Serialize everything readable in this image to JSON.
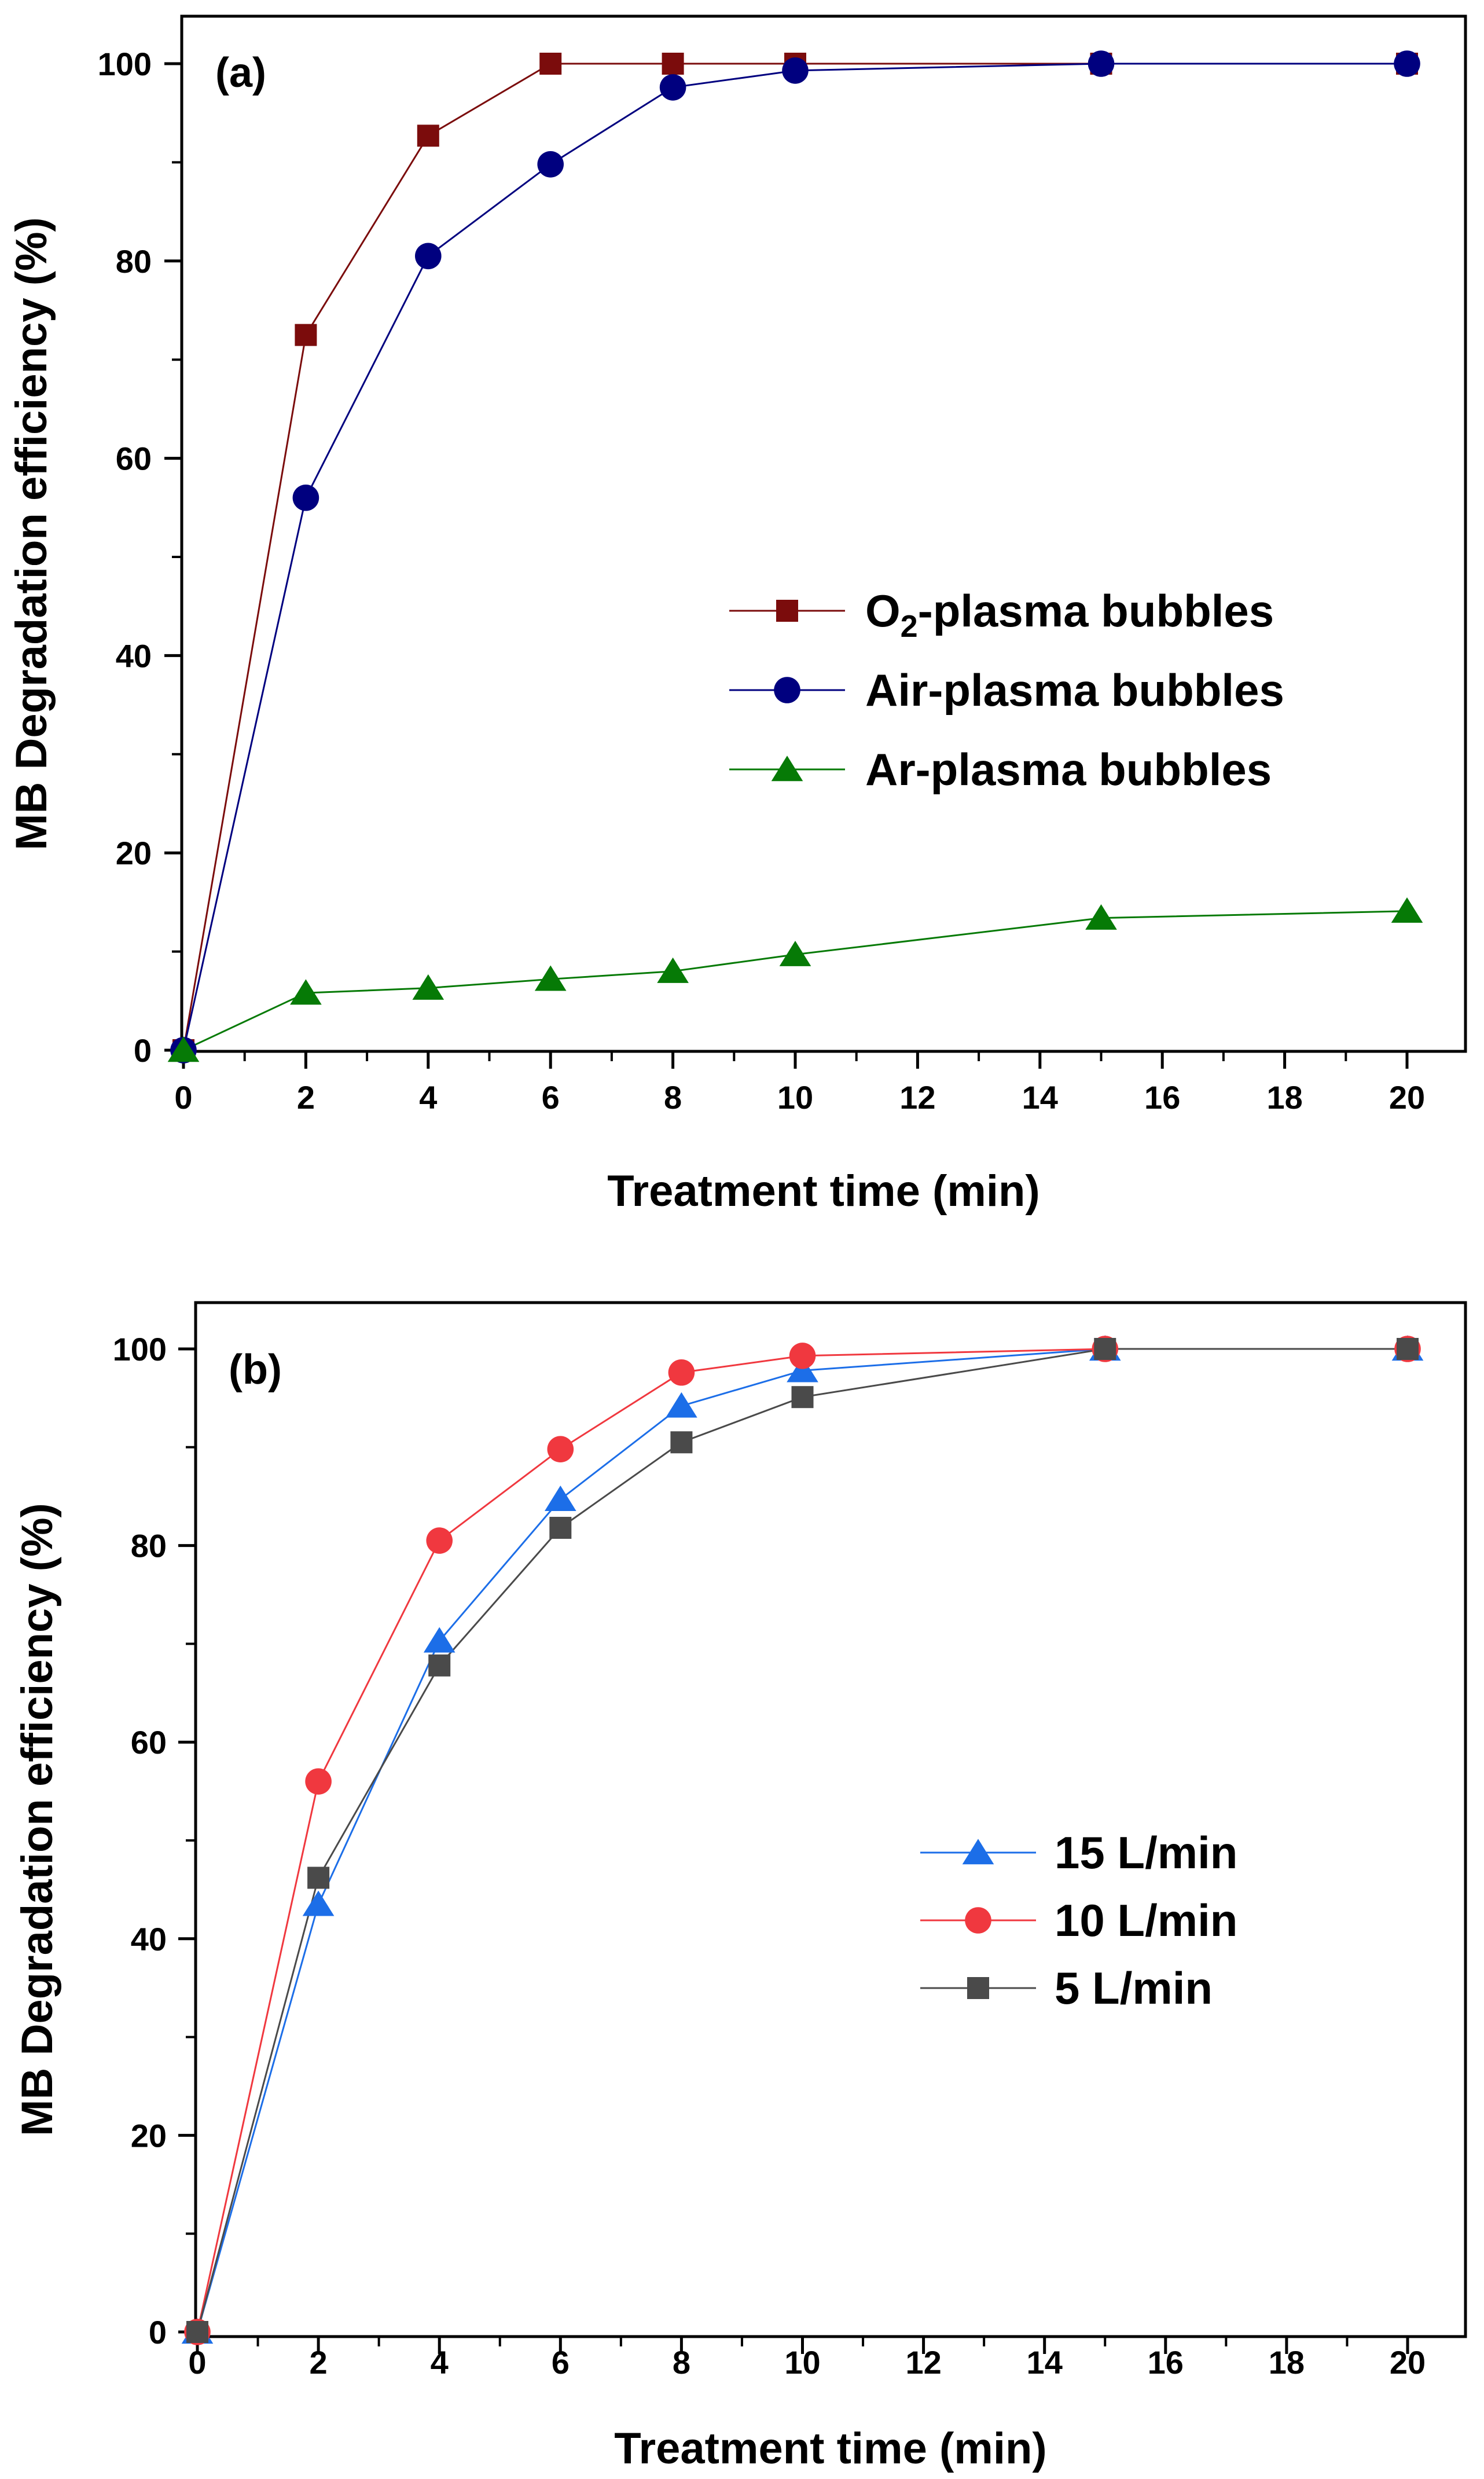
{
  "chart_data": [
    {
      "type": "line",
      "panel_label": "(a)",
      "xlabel": "Treatment time (min)",
      "ylabel": "MB Degradation efficiency (%)",
      "xlim": [
        0,
        21
      ],
      "ylim": [
        0,
        104
      ],
      "xticks": [
        0,
        2,
        4,
        6,
        8,
        10,
        12,
        14,
        16,
        18,
        20
      ],
      "yticks": [
        0,
        20,
        40,
        60,
        80,
        100
      ],
      "legend_position": "center-right",
      "series": [
        {
          "name": "O2-plasma bubbles",
          "legend_main": "O",
          "legend_sub": "2",
          "legend_rest": "-plasma bubbles",
          "color": "#7b0c0c",
          "marker": "square",
          "x": [
            0,
            2,
            4,
            6,
            8,
            10,
            15,
            20
          ],
          "values": [
            0,
            72.5,
            92.7,
            100,
            100,
            100,
            100,
            100
          ]
        },
        {
          "name": "Air-plasma bubbles",
          "color": "#00007f",
          "marker": "circle",
          "x": [
            0,
            2,
            4,
            6,
            8,
            10,
            15,
            20
          ],
          "values": [
            0,
            56,
            80.5,
            89.8,
            97.6,
            99.3,
            100,
            100
          ]
        },
        {
          "name": "Ar-plasma bubbles",
          "color": "#067a06",
          "marker": "triangle",
          "x": [
            0,
            2,
            4,
            6,
            8,
            10,
            15,
            20
          ],
          "values": [
            0,
            5.8,
            6.3,
            7.2,
            8,
            9.7,
            13.4,
            14.1
          ]
        }
      ]
    },
    {
      "type": "line",
      "panel_label": "(b)",
      "xlabel": "Treatment time (min)",
      "ylabel": "MB Degradation efficiency (%)",
      "xlim": [
        0,
        21
      ],
      "ylim": [
        0,
        103
      ],
      "xticks": [
        0,
        2,
        4,
        6,
        8,
        10,
        12,
        14,
        16,
        18,
        20
      ],
      "yticks": [
        0,
        20,
        40,
        60,
        80,
        100
      ],
      "legend_position": "center-right",
      "series": [
        {
          "name": "15 L/min",
          "color": "#1c6ee8",
          "marker": "triangle",
          "x": [
            0,
            2,
            4,
            6,
            8,
            10,
            15,
            20
          ],
          "values": [
            0,
            43.5,
            70.3,
            84.7,
            94.2,
            97.8,
            100,
            100
          ]
        },
        {
          "name": "10 L/min",
          "color": "#f0383f",
          "marker": "circle",
          "x": [
            0,
            2,
            4,
            6,
            8,
            10,
            15,
            20
          ],
          "values": [
            0,
            56,
            80.5,
            89.8,
            97.6,
            99.3,
            100,
            100
          ]
        },
        {
          "name": "5 L/min",
          "color": "#4a4a4a",
          "marker": "square",
          "x": [
            0,
            2,
            4,
            6,
            8,
            10,
            15,
            20
          ],
          "values": [
            0,
            46.2,
            67.8,
            81.8,
            90.5,
            95.1,
            100,
            100
          ]
        }
      ]
    }
  ]
}
